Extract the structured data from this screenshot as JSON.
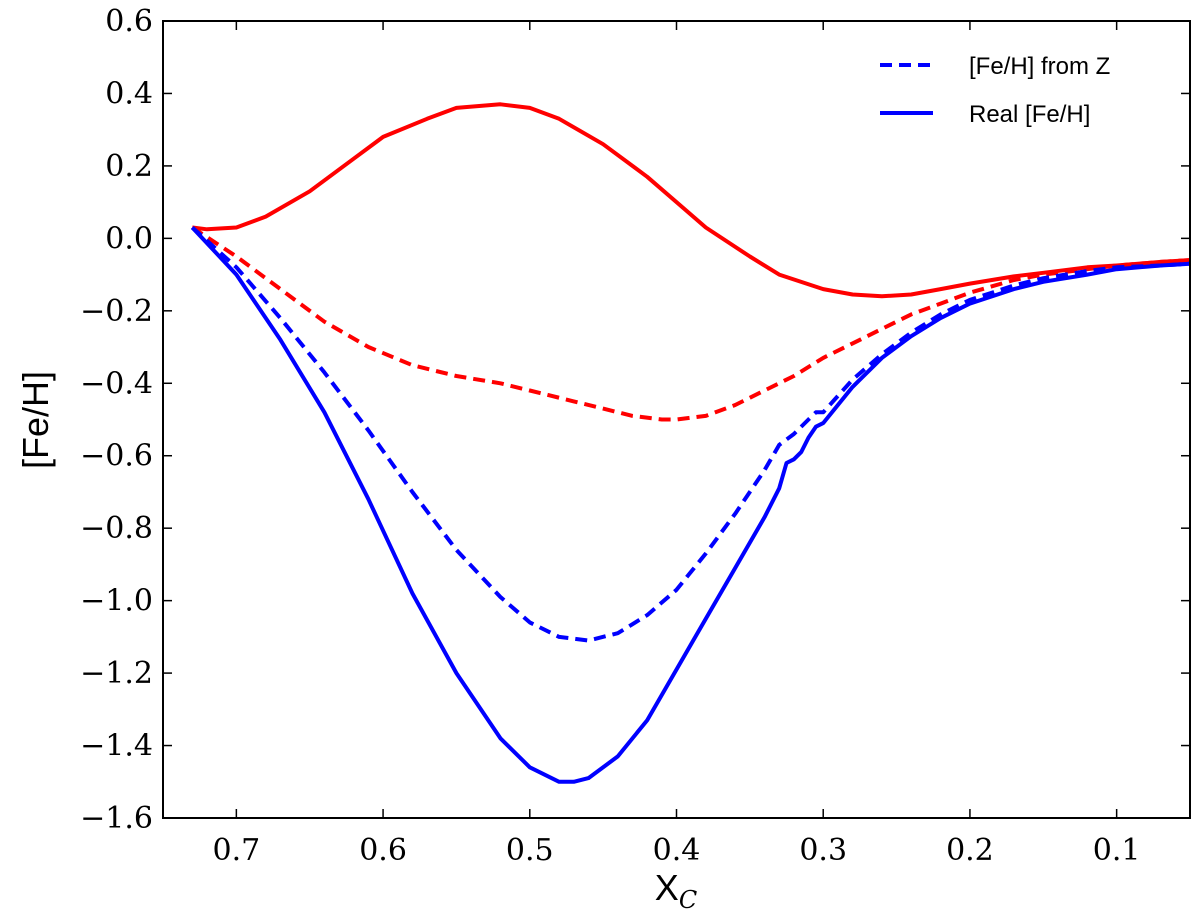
{
  "chart_data": {
    "type": "line",
    "title": "",
    "xlabel": "X",
    "xlabel_subscript": "C",
    "ylabel": "[Fe/H]",
    "xlim": [
      0.75,
      0.05
    ],
    "ylim": [
      -1.6,
      0.6
    ],
    "x_ticks": [
      0.7,
      0.6,
      0.5,
      0.4,
      0.3,
      0.2,
      0.1
    ],
    "y_ticks": [
      0.6,
      0.4,
      0.2,
      0.0,
      -0.2,
      -0.4,
      -0.6,
      -0.8,
      -1.0,
      -1.2,
      -1.4,
      -1.6
    ],
    "x_tick_labels": [
      "0.7",
      "0.6",
      "0.5",
      "0.4",
      "0.3",
      "0.2",
      "0.1"
    ],
    "y_tick_labels": [
      "0.6",
      "0.4",
      "0.2",
      "0.0",
      "−0.2",
      "−0.4",
      "−0.6",
      "−0.8",
      "−1.0",
      "−1.2",
      "−1.4",
      "−1.6"
    ],
    "grid": false,
    "legend_position": "top-right",
    "legend": [
      {
        "label": "[Fe/H] from Z",
        "style": "dashed",
        "color": "#0000ff"
      },
      {
        "label": "Real [Fe/H]",
        "style": "solid",
        "color": "#0000ff"
      }
    ],
    "series": [
      {
        "name": "Real [Fe/H] (red)",
        "color": "#ff0000",
        "style": "solid",
        "x": [
          0.73,
          0.72,
          0.7,
          0.68,
          0.65,
          0.62,
          0.6,
          0.57,
          0.55,
          0.52,
          0.5,
          0.48,
          0.45,
          0.42,
          0.4,
          0.38,
          0.35,
          0.33,
          0.3,
          0.28,
          0.26,
          0.24,
          0.22,
          0.2,
          0.17,
          0.15,
          0.12,
          0.1,
          0.07,
          0.05
        ],
        "y": [
          0.03,
          0.025,
          0.03,
          0.06,
          0.13,
          0.22,
          0.28,
          0.33,
          0.36,
          0.37,
          0.36,
          0.33,
          0.26,
          0.17,
          0.1,
          0.03,
          -0.05,
          -0.1,
          -0.14,
          -0.155,
          -0.16,
          -0.155,
          -0.14,
          -0.125,
          -0.105,
          -0.095,
          -0.08,
          -0.075,
          -0.065,
          -0.06
        ]
      },
      {
        "name": "[Fe/H] from Z (red)",
        "color": "#ff0000",
        "style": "dashed",
        "x": [
          0.73,
          0.7,
          0.67,
          0.64,
          0.61,
          0.58,
          0.55,
          0.52,
          0.5,
          0.47,
          0.45,
          0.43,
          0.41,
          0.4,
          0.38,
          0.36,
          0.34,
          0.32,
          0.3,
          0.28,
          0.26,
          0.24,
          0.22,
          0.2,
          0.17,
          0.15,
          0.12,
          0.1,
          0.07,
          0.05
        ],
        "y": [
          0.03,
          -0.05,
          -0.14,
          -0.23,
          -0.3,
          -0.35,
          -0.38,
          -0.4,
          -0.42,
          -0.45,
          -0.47,
          -0.49,
          -0.5,
          -0.5,
          -0.49,
          -0.46,
          -0.42,
          -0.38,
          -0.33,
          -0.29,
          -0.25,
          -0.21,
          -0.18,
          -0.15,
          -0.115,
          -0.1,
          -0.085,
          -0.075,
          -0.065,
          -0.06
        ]
      },
      {
        "name": "[Fe/H] from Z (blue)",
        "color": "#0000ff",
        "style": "dashed",
        "x": [
          0.73,
          0.7,
          0.67,
          0.64,
          0.61,
          0.58,
          0.55,
          0.52,
          0.5,
          0.48,
          0.46,
          0.44,
          0.42,
          0.4,
          0.38,
          0.36,
          0.34,
          0.33,
          0.32,
          0.31,
          0.305,
          0.3,
          0.28,
          0.26,
          0.24,
          0.22,
          0.2,
          0.17,
          0.15,
          0.12,
          0.1,
          0.07,
          0.05
        ],
        "y": [
          0.03,
          -0.08,
          -0.22,
          -0.37,
          -0.53,
          -0.7,
          -0.86,
          -0.99,
          -1.06,
          -1.1,
          -1.11,
          -1.09,
          -1.04,
          -0.97,
          -0.87,
          -0.76,
          -0.64,
          -0.57,
          -0.54,
          -0.5,
          -0.48,
          -0.48,
          -0.39,
          -0.32,
          -0.26,
          -0.21,
          -0.17,
          -0.13,
          -0.11,
          -0.09,
          -0.08,
          -0.075,
          -0.07
        ]
      },
      {
        "name": "Real [Fe/H] (blue)",
        "color": "#0000ff",
        "style": "solid",
        "x": [
          0.73,
          0.7,
          0.67,
          0.64,
          0.61,
          0.58,
          0.55,
          0.52,
          0.5,
          0.48,
          0.47,
          0.46,
          0.44,
          0.42,
          0.4,
          0.38,
          0.36,
          0.34,
          0.33,
          0.325,
          0.32,
          0.315,
          0.31,
          0.305,
          0.3,
          0.28,
          0.26,
          0.24,
          0.22,
          0.2,
          0.17,
          0.15,
          0.12,
          0.1,
          0.07,
          0.05
        ],
        "y": [
          0.03,
          -0.1,
          -0.28,
          -0.48,
          -0.72,
          -0.98,
          -1.2,
          -1.38,
          -1.46,
          -1.5,
          -1.5,
          -1.49,
          -1.43,
          -1.33,
          -1.19,
          -1.05,
          -0.91,
          -0.77,
          -0.69,
          -0.62,
          -0.61,
          -0.59,
          -0.55,
          -0.52,
          -0.51,
          -0.41,
          -0.33,
          -0.27,
          -0.22,
          -0.18,
          -0.14,
          -0.12,
          -0.1,
          -0.085,
          -0.075,
          -0.07
        ]
      }
    ]
  }
}
